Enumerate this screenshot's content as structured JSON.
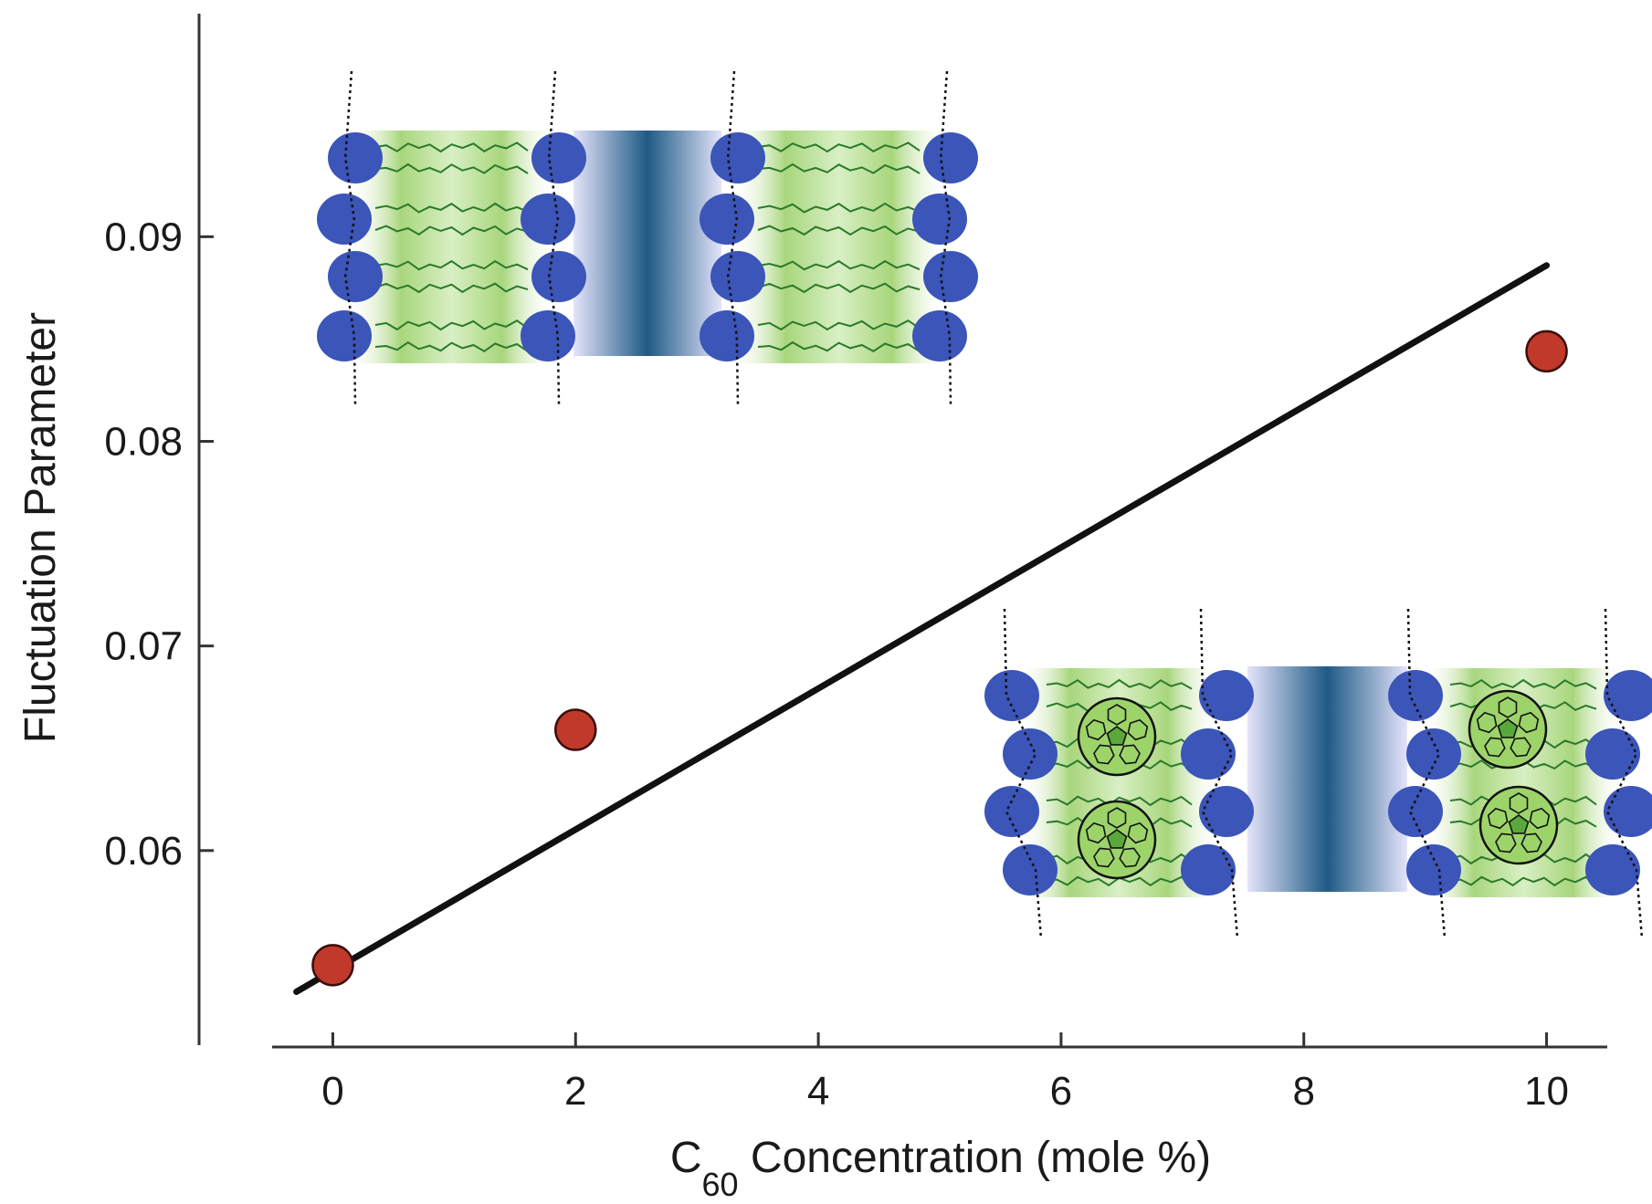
{
  "chart_data": {
    "type": "scatter",
    "xlabel_main": "C",
    "xlabel_sub": "60",
    "xlabel_rest": " Concentration (mole %)",
    "ylabel": "Fluctuation Parameter",
    "xlim": [
      -0.5,
      10.5
    ],
    "ylim": [
      0.0504,
      0.1009
    ],
    "x_ticks": [
      0,
      2,
      4,
      6,
      8,
      10
    ],
    "x_tick_labels": [
      "0",
      "2",
      "4",
      "6",
      "8",
      "10"
    ],
    "y_ticks": [
      0.06,
      0.07,
      0.08,
      0.09
    ],
    "y_tick_labels": [
      "0.06",
      "0.07",
      "0.08",
      "0.09"
    ],
    "grid": false,
    "series": [
      {
        "type": "scatter",
        "x": [
          0,
          2,
          10
        ],
        "y": [
          0.0544,
          0.0659,
          0.0844
        ],
        "color": "#c0392b"
      },
      {
        "type": "line",
        "x": [
          -0.3,
          10
        ],
        "y": [
          0.0531,
          0.0886
        ],
        "color": "#111111"
      }
    ],
    "insets": [
      {
        "position": "top-left",
        "shows": "lipid-bilayer-pair",
        "fullerenes": false
      },
      {
        "position": "bottom-right",
        "shows": "lipid-bilayer-pair",
        "fullerenes": true
      }
    ],
    "colors": {
      "head_group": "#3b55b8",
      "tail_chain": "#2a7a2a",
      "tail_fill": "#b5dc8c",
      "water_center": "#20588a",
      "water_edge": "#d8d8f6",
      "point": "#c0392b",
      "fit_line": "#111111"
    }
  }
}
